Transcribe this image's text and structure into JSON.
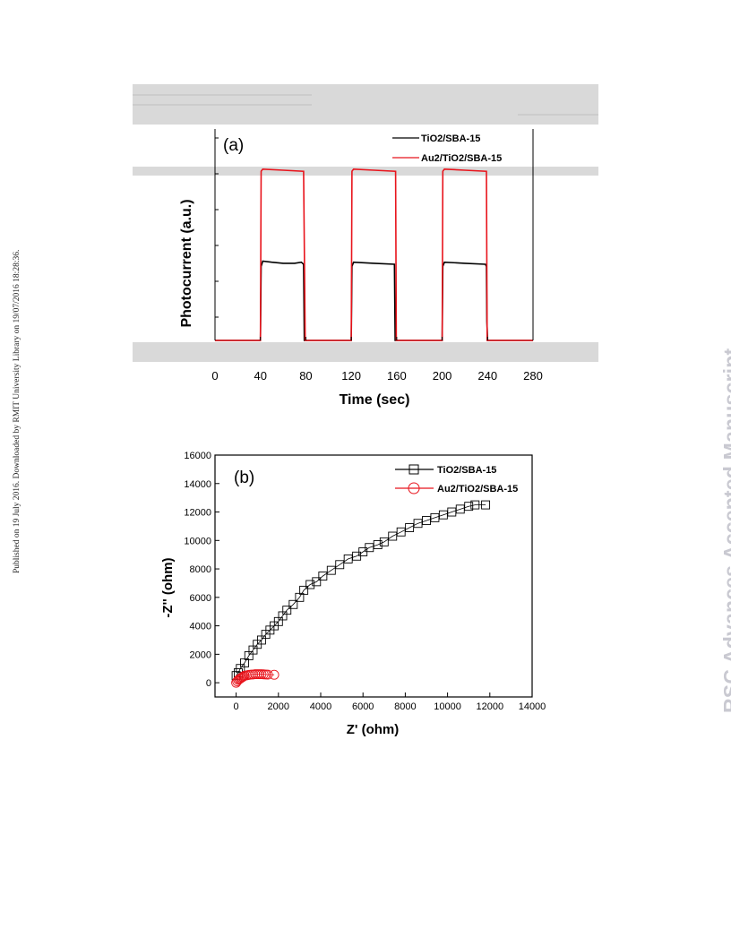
{
  "side_left_text": "Published on 19 July 2016. Downloaded by RMIT University Library on 19/07/2016 18:28:36.",
  "side_right_text": "RSC Advances Accepted Manuscript",
  "colors": {
    "black": "#000000",
    "red": "#e8141c",
    "watermark": "#c9c9d1",
    "band": "#d9d9d9"
  },
  "chart_data": [
    {
      "type": "line",
      "panel_label": "(a)",
      "xlabel": "Time (sec)",
      "ylabel": "Photocurrent (a.u.)",
      "xlim": [
        0,
        280
      ],
      "ylim": [
        0,
        1
      ],
      "xticks": [
        0,
        40,
        80,
        120,
        160,
        200,
        240,
        280
      ],
      "legend": [
        "TiO2/SBA-15",
        "Au2/TiO2/SBA-15"
      ],
      "legend_position": "top-right",
      "series": [
        {
          "name": "TiO2/SBA-15",
          "color": "#000000",
          "points": [
            [
              0,
              0
            ],
            [
              40,
              0
            ],
            [
              40.6,
              0.35
            ],
            [
              42,
              0.375
            ],
            [
              50,
              0.37
            ],
            [
              60,
              0.365
            ],
            [
              70,
              0.365
            ],
            [
              76,
              0.37
            ],
            [
              78,
              0.36
            ],
            [
              78.6,
              0
            ],
            [
              120,
              0
            ],
            [
              120.6,
              0.35
            ],
            [
              122,
              0.37
            ],
            [
              140,
              0.365
            ],
            [
              158,
              0.36
            ],
            [
              158.6,
              0.0
            ],
            [
              160,
              0
            ],
            [
              200,
              0
            ],
            [
              200.6,
              0.35
            ],
            [
              202,
              0.37
            ],
            [
              220,
              0.365
            ],
            [
              238,
              0.36
            ],
            [
              239,
              0.35
            ],
            [
              239.4,
              0.09
            ],
            [
              240,
              0
            ],
            [
              280,
              0
            ]
          ]
        },
        {
          "name": "Au2/TiO2/SBA-15",
          "color": "#e8141c",
          "points": [
            [
              0,
              0
            ],
            [
              40,
              0
            ],
            [
              40.6,
              0.8
            ],
            [
              42,
              0.81
            ],
            [
              60,
              0.805
            ],
            [
              78,
              0.8
            ],
            [
              79.4,
              0
            ],
            [
              120,
              0
            ],
            [
              120.6,
              0.8
            ],
            [
              122,
              0.81
            ],
            [
              140,
              0.805
            ],
            [
              159,
              0.8
            ],
            [
              159.6,
              0
            ],
            [
              200,
              0
            ],
            [
              200.6,
              0.8
            ],
            [
              202,
              0.81
            ],
            [
              220,
              0.805
            ],
            [
              239,
              0.8
            ],
            [
              239.6,
              0
            ],
            [
              280,
              0
            ]
          ]
        }
      ]
    },
    {
      "type": "scatter",
      "panel_label": "(b)",
      "xlabel": "Z' (ohm)",
      "ylabel": "-Z'' (ohm)",
      "xlim": [
        -1000,
        14000
      ],
      "ylim": [
        -1000,
        16000
      ],
      "xticks": [
        0,
        2000,
        4000,
        6000,
        8000,
        10000,
        12000,
        14000
      ],
      "yticks": [
        0,
        2000,
        4000,
        6000,
        8000,
        10000,
        12000,
        14000,
        16000
      ],
      "legend": [
        "TiO2/SBA-15",
        "Au2/TiO2/SBA-15"
      ],
      "legend_position": "top-right",
      "series": [
        {
          "name": "TiO2/SBA-15",
          "marker": "square",
          "color": "#000000",
          "x": [
            0,
            100,
            200,
            400,
            600,
            800,
            1000,
            1200,
            1400,
            1600,
            1800,
            2000,
            2200,
            2400,
            2700,
            3000,
            3200,
            3500,
            3800,
            4100,
            4500,
            4900,
            5300,
            5700,
            6000,
            6300,
            6700,
            7000,
            7400,
            7800,
            8200,
            8600,
            9000,
            9400,
            9800,
            10200,
            10600,
            11000,
            11300,
            11800
          ],
          "y": [
            500,
            700,
            1000,
            1400,
            1900,
            2300,
            2700,
            3000,
            3400,
            3700,
            4000,
            4300,
            4700,
            5100,
            5500,
            6000,
            6500,
            6900,
            7100,
            7500,
            7900,
            8300,
            8700,
            8900,
            9200,
            9500,
            9700,
            9900,
            10300,
            10600,
            10900,
            11200,
            11400,
            11600,
            11800,
            12000,
            12200,
            12400,
            12500,
            12500
          ]
        },
        {
          "name": "Au2/TiO2/SBA-15",
          "marker": "circle",
          "color": "#e8141c",
          "x": [
            0,
            50,
            100,
            150,
            200,
            250,
            300,
            350,
            400,
            500,
            600,
            700,
            800,
            900,
            1000,
            1100,
            1200,
            1300,
            1400,
            1500,
            1800
          ],
          "y": [
            0,
            100,
            200,
            250,
            300,
            350,
            400,
            450,
            500,
            520,
            550,
            570,
            580,
            600,
            600,
            600,
            600,
            590,
            580,
            570,
            560
          ]
        }
      ]
    }
  ]
}
